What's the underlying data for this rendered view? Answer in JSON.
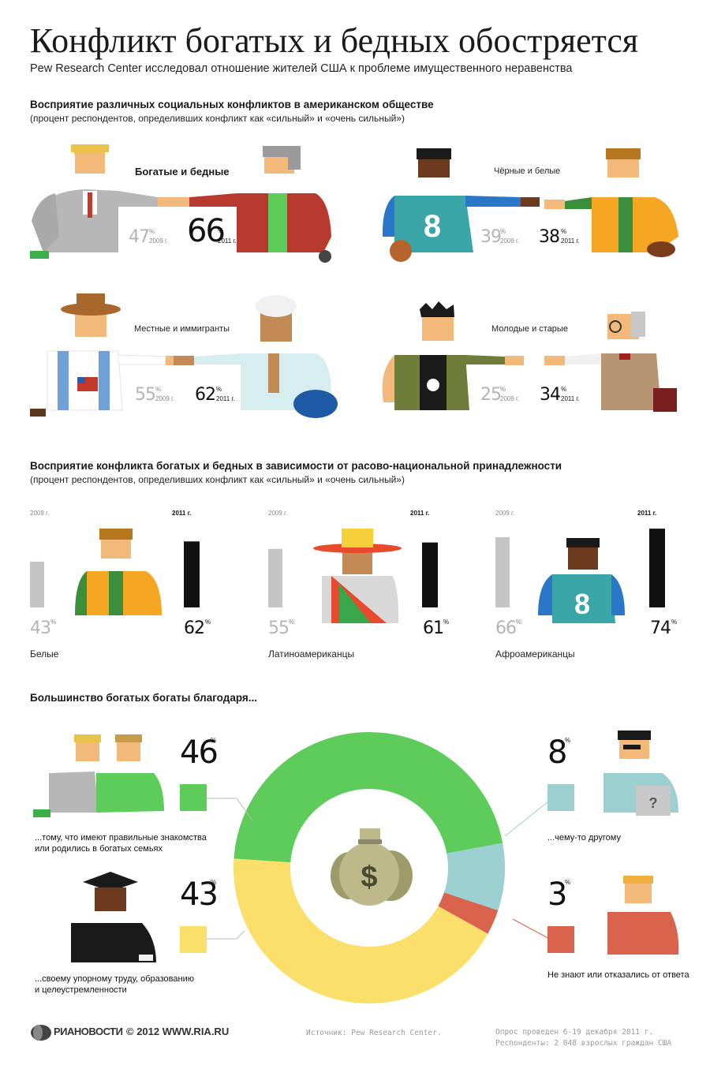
{
  "header": {
    "title": "Конфликт богатых и бедных обостряется",
    "subtitle": "Pew Research Center исследовал отношение жителей США к проблеме имущественного неравенства"
  },
  "section1": {
    "title": "Восприятие различных социальных конфликтов в американском обществе",
    "note": "(процент респондентов, определивших конфликт как «сильный» и «очень сильный»)",
    "conflicts": [
      {
        "label": "Богатые и бедные",
        "v2009": "47",
        "v2011": "66",
        "y2009": "2009 г.",
        "y2011": "2011 г.",
        "pct": "%"
      },
      {
        "label": "Чёрные и белые",
        "v2009": "39",
        "v2011": "38",
        "y2009": "2009 г.",
        "y2011": "2011 г.",
        "pct": "%"
      },
      {
        "label": "Местные и иммигранты",
        "v2009": "55",
        "v2011": "62",
        "y2009": "2009 г.",
        "y2011": "2011 г.",
        "pct": "%"
      },
      {
        "label": "Молодые и старые",
        "v2009": "25",
        "v2011": "34",
        "y2009": "2009 г.",
        "y2011": "2011 г.",
        "pct": "%"
      }
    ]
  },
  "section2": {
    "title": "Восприятие конфликта богатых и бедных в зависимости от расово-национальной принадлежности",
    "note": "(процент респондентов, определивших конфликт как «сильный» и «очень сильный»)",
    "groups": [
      {
        "label": "Белые",
        "y2009": "2009 г.",
        "y2011": "2011 г.",
        "v2009": "43",
        "v2011": "62",
        "pct": "%"
      },
      {
        "label": "Латиноамериканцы",
        "y2009": "2009 г.",
        "y2011": "2011 г.",
        "v2009": "55",
        "v2011": "61",
        "pct": "%"
      },
      {
        "label": "Афроамериканцы",
        "y2009": "2009 г.",
        "y2011": "2011 г.",
        "v2009": "66",
        "v2011": "74",
        "pct": "%"
      }
    ]
  },
  "section3": {
    "title": "Большинство богатых богаты благодаря...",
    "answers": [
      {
        "value": "46",
        "pct": "%",
        "text1": "...тому, что имеют правильные знакомства",
        "text2": "или родились в богатых семьях",
        "color": "#5dcc5a"
      },
      {
        "value": "43",
        "pct": "%",
        "text1": "...своему упорному труду, образованию",
        "text2": "и целеустремленности",
        "color": "#fbdf6b"
      },
      {
        "value": "8",
        "pct": "%",
        "text1": "...чему-то другому",
        "text2": "",
        "color": "#9ccfd0"
      },
      {
        "value": "3",
        "pct": "%",
        "text1": "Не знают или отказались от ответа",
        "text2": "",
        "color": "#d9634c"
      }
    ]
  },
  "chart_data": [
    {
      "type": "bar",
      "categories": [
        "Белые",
        "Латиноамериканцы",
        "Афроамериканцы"
      ],
      "series": [
        {
          "name": "2009 г.",
          "values": [
            43,
            55,
            66
          ],
          "color": "#c4c4c4"
        },
        {
          "name": "2011 г.",
          "values": [
            62,
            61,
            74
          ],
          "color": "#111111"
        }
      ],
      "ylim": [
        0,
        80
      ]
    },
    {
      "type": "pie",
      "categories": [
        "...тому, что имеют правильные знакомства или родились в богатых семьях",
        "...чему-то другому",
        "Не знают или отказались от ответа",
        "...своему упорному труду, образованию и целеустремленности"
      ],
      "values": [
        46,
        8,
        3,
        43
      ],
      "colors": [
        "#5dcc5a",
        "#9ccfd0",
        "#d9634c",
        "#fbdf6b"
      ]
    }
  ],
  "footer": {
    "logo_text": "РИАНОВОСТИ",
    "copyright": "© 2012 WWW.RIA.RU",
    "source": "Источник: Pew Research Center.",
    "survey": "Опрос проведен 6-19 декабря 2011 г.",
    "respondents": "Респонденты: 2 048 взрослых граждан США"
  },
  "colors": {
    "green": "#5dcc5a",
    "yellow": "#fbdf6b",
    "teal": "#9ccfd0",
    "red": "#d9634c",
    "gray_bar": "#c4c4c4",
    "black_bar": "#111111"
  }
}
